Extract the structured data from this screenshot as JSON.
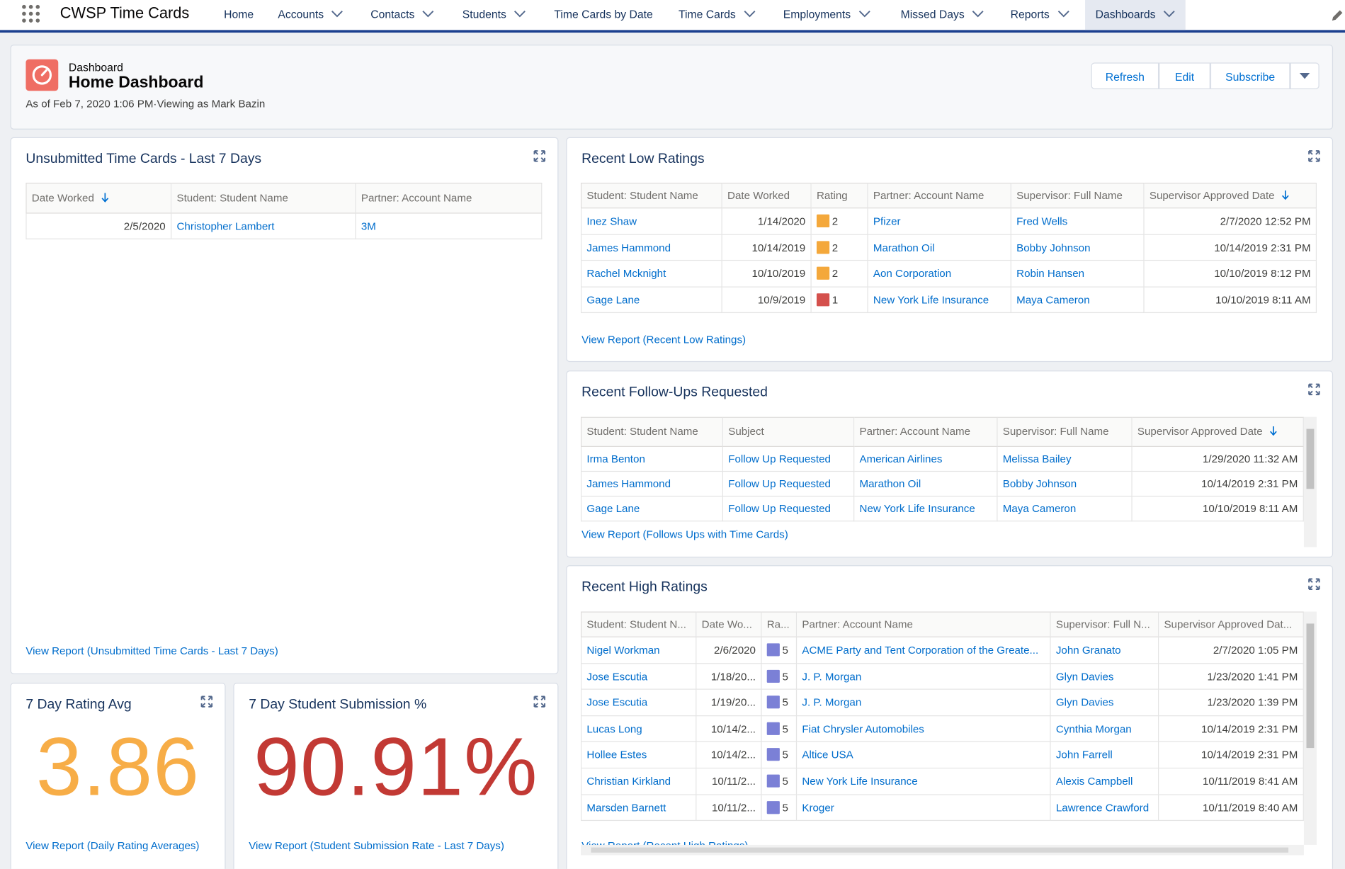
{
  "nav": {
    "app_name": "CWSP Time Cards",
    "items": [
      {
        "label": "Home",
        "menu": false
      },
      {
        "label": "Accounts",
        "menu": true
      },
      {
        "label": "Contacts",
        "menu": true
      },
      {
        "label": "Students",
        "menu": true
      },
      {
        "label": "Time Cards by Date",
        "menu": false
      },
      {
        "label": "Time Cards",
        "menu": true
      },
      {
        "label": "Employments",
        "menu": true
      },
      {
        "label": "Missed Days",
        "menu": true
      },
      {
        "label": "Reports",
        "menu": true
      },
      {
        "label": "Dashboards",
        "menu": true,
        "active": true
      }
    ]
  },
  "header": {
    "eyebrow": "Dashboard",
    "title": "Home Dashboard",
    "subtitle": "As of Feb 7, 2020 1:06 PM·Viewing as Mark Bazin",
    "buttons": [
      "Refresh",
      "Edit",
      "Subscribe"
    ]
  },
  "widgets": [
    {
      "type": "table",
      "title": "Unsubmitted Time Cards - Last 7 Days",
      "columns": [
        {
          "label": "Date Worked",
          "sorted": true
        },
        {
          "label": "Student: Student Name"
        },
        {
          "label": "Partner: Account Name"
        }
      ],
      "rows": [
        [
          "2/5/2020",
          "Christopher Lambert",
          "3M"
        ]
      ],
      "link": "View Report (Unsubmitted Time Cards - Last 7 Days)"
    },
    {
      "type": "metric",
      "title": "7 Day Rating Avg",
      "value": 3.86,
      "color": "#f7ad47",
      "link": "View Report (Daily Rating Averages)"
    },
    {
      "type": "metric",
      "title": "7 Day Student Submission %",
      "value": 90.91,
      "value_label": "90.91%",
      "color": "#c23934",
      "link": "View Report (Student Submission Rate - Last 7 Days)"
    },
    {
      "type": "table",
      "title": "Recent Low Ratings",
      "columns": [
        {
          "label": "Student: Student Name"
        },
        {
          "label": "Date Worked"
        },
        {
          "label": "Rating"
        },
        {
          "label": "Partner: Account Name"
        },
        {
          "label": "Supervisor: Full Name"
        },
        {
          "label": "Supervisor Approved Date",
          "sorted": true
        }
      ],
      "rows": [
        [
          "Inez Shaw",
          "1/14/2020",
          2,
          "Pfizer",
          "Fred Wells",
          "2/7/2020 12:52 PM"
        ],
        [
          "James Hammond",
          "10/14/2019",
          2,
          "Marathon Oil",
          "Bobby Johnson",
          "10/14/2019 2:31 PM"
        ],
        [
          "Rachel Mcknight",
          "10/10/2019",
          2,
          "Aon Corporation",
          "Robin Hansen",
          "10/10/2019 8:12 PM"
        ],
        [
          "Gage Lane",
          "10/9/2019",
          1,
          "New York Life Insurance",
          "Maya Cameron",
          "10/10/2019 8:11 AM"
        ]
      ],
      "link": "View Report (Recent Low Ratings)"
    },
    {
      "type": "table",
      "title": "Recent Follow-Ups Requested",
      "columns": [
        {
          "label": "Student: Student Name"
        },
        {
          "label": "Subject"
        },
        {
          "label": "Partner: Account Name"
        },
        {
          "label": "Supervisor: Full Name"
        },
        {
          "label": "Supervisor Approved Date",
          "sorted": true
        }
      ],
      "rows": [
        [
          "Irma Benton",
          "Follow Up Requested",
          "American Airlines",
          "Melissa Bailey",
          "1/29/2020 11:32 AM"
        ],
        [
          "James Hammond",
          "Follow Up Requested",
          "Marathon Oil",
          "Bobby Johnson",
          "10/14/2019 2:31 PM"
        ],
        [
          "Gage Lane",
          "Follow Up Requested",
          "New York Life Insurance",
          "Maya Cameron",
          "10/10/2019 8:11 AM"
        ]
      ],
      "link": "View Report (Follows Ups with Time Cards)"
    },
    {
      "type": "table",
      "title": "Recent High Ratings",
      "columns": [
        {
          "label": "Student: Student N..."
        },
        {
          "label": "Date Wo..."
        },
        {
          "label": "Ra..."
        },
        {
          "label": "Partner: Account Name"
        },
        {
          "label": "Supervisor: Full N..."
        },
        {
          "label": "Supervisor Approved Dat..."
        }
      ],
      "rows": [
        [
          "Nigel Workman",
          "2/6/2020",
          5,
          "ACME Party and Tent Corporation of the Greate...",
          "John Granato",
          "2/7/2020 1:05 PM"
        ],
        [
          "Jose Escutia",
          "1/18/20...",
          5,
          "J. P. Morgan",
          "Glyn Davies",
          "1/23/2020 1:41 PM"
        ],
        [
          "Jose Escutia",
          "1/19/20...",
          5,
          "J. P. Morgan",
          "Glyn Davies",
          "1/23/2020 1:39 PM"
        ],
        [
          "Lucas Long",
          "10/14/2...",
          5,
          "Fiat Chrysler Automobiles",
          "Cynthia Morgan",
          "10/14/2019 2:31 PM"
        ],
        [
          "Hollee Estes",
          "10/14/2...",
          5,
          "Altice USA",
          "John Farrell",
          "10/14/2019 2:31 PM"
        ],
        [
          "Christian Kirkland",
          "10/11/2...",
          5,
          "New York Life Insurance",
          "Alexis Campbell",
          "10/11/2019 8:41 AM"
        ],
        [
          "Marsden Barnett",
          "10/11/2...",
          5,
          "Kroger",
          "Lawrence Crawford",
          "10/11/2019 8:40 AM"
        ]
      ],
      "link": "View Report (Recent High Ratings)"
    }
  ]
}
